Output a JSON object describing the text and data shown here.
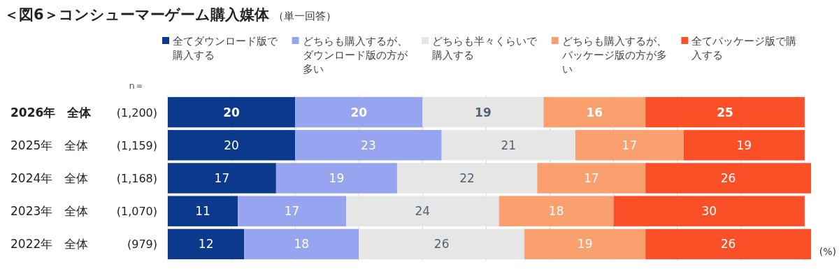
{
  "chart_data": {
    "type": "bar",
    "orientation": "horizontal",
    "stacked": true,
    "title": "＜図6＞コンシューマーゲーム購入媒体",
    "subtitle": "（単一回答）",
    "categories": [
      "**2026年　全体**",
      "2025年　全体",
      "2024年　全体",
      "2023年　全体",
      "2022年　全体"
    ],
    "series": [
      {
        "name": "全てダウンロード版で購入する",
        "color": "#0b3a8c",
        "values": [
          20,
          20,
          17,
          11,
          12
        ]
      },
      {
        "name": "どちらも購入するが、ダウンロード版の方が多い",
        "color": "#97a4f0",
        "values": [
          20,
          23,
          19,
          17,
          18
        ]
      },
      {
        "name": "どちらも半々くらいで購入する",
        "color": "#e6e6e6",
        "values": [
          19,
          21,
          22,
          24,
          26
        ]
      },
      {
        "name": "どちらも購入するが、パッケージ版の方が多い",
        "color": "#fa9f6e",
        "values": [
          16,
          17,
          17,
          18,
          19
        ]
      },
      {
        "name": "全てパッケージ版で購入する",
        "color": "#fb5027",
        "values": [
          25,
          19,
          26,
          30,
          26
        ]
      }
    ],
    "xlim": [
      0,
      101
    ],
    "xticks": [
      {
        "value": 0,
        "label": null
      },
      {
        "value": 10,
        "label": null
      },
      {
        "value": 20,
        "label": null
      },
      {
        "value": 30,
        "label": null
      },
      {
        "value": 40,
        "label": null
      },
      {
        "value": 50,
        "label": null
      },
      {
        "value": 60,
        "label": null
      },
      {
        "value": 70,
        "label": null
      },
      {
        "value": 80,
        "label": null
      },
      {
        "value": 90,
        "label": null
      },
      {
        "value": 100,
        "label": null
      }
    ],
    "grid": "x",
    "tick_labels": "y",
    "data_labels": true,
    "legend": "top",
    "annotations": [
      "n＝",
      "(1,200)",
      "(1,159)",
      "(1,168)",
      "(1,070)",
      "(979)",
      "(%)"
    ]
  }
}
